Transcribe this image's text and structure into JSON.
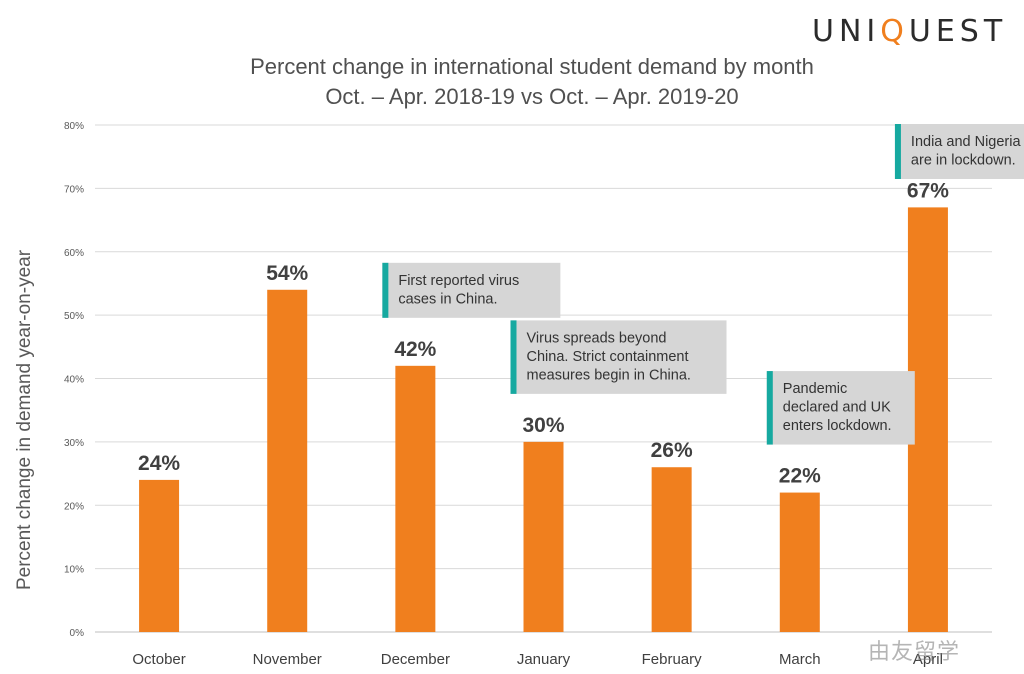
{
  "logo": {
    "text_pre": "UNI",
    "text_accent": "Q",
    "text_post": "UEST"
  },
  "watermark": "由友留学",
  "chart_data": {
    "type": "bar",
    "title": "Percent change in international student demand by month",
    "subtitle": "Oct. – Apr. 2018-19 vs Oct. – Apr. 2019-20",
    "xlabel": "",
    "ylabel": "Percent change in demand year-on-year",
    "ylim": [
      0,
      80
    ],
    "yticks": [
      "0%",
      "10%",
      "20%",
      "30%",
      "40%",
      "50%",
      "60%",
      "70%",
      "80%"
    ],
    "categories": [
      "October",
      "November",
      "December",
      "January",
      "February",
      "March",
      "April"
    ],
    "values": [
      24,
      54,
      42,
      30,
      26,
      22,
      67
    ],
    "data_labels": [
      "24%",
      "54%",
      "42%",
      "30%",
      "26%",
      "22%",
      "67%"
    ],
    "grid": true,
    "bar_color": "#f07f1e",
    "annotations": [
      {
        "category": "December",
        "lines": [
          "First reported virus",
          "cases in China."
        ]
      },
      {
        "category": "January",
        "lines": [
          "Virus spreads beyond",
          "China. Strict containment",
          "measures begin in China."
        ]
      },
      {
        "category": "March",
        "lines": [
          "Pandemic",
          "declared and UK",
          "enters lockdown."
        ]
      },
      {
        "category": "April",
        "lines": [
          "India and Nigeria",
          "are in lockdown."
        ]
      }
    ]
  }
}
